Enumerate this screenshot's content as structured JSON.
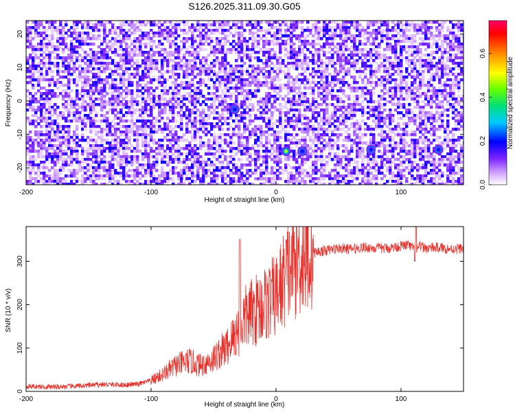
{
  "title": "S126.2025.311.09.30.G05",
  "chart_data": [
    {
      "type": "heatmap",
      "xlabel": "Height of straight line (km)",
      "ylabel": "Frequency (Hz)",
      "xlim": [
        -200,
        150
      ],
      "ylim": [
        -25,
        24
      ],
      "xticks": [
        -200,
        -100,
        0,
        100
      ],
      "xtick_labels": [
        "-200",
        "-100",
        "0",
        "100"
      ],
      "yticks": [
        -20,
        -10,
        0,
        10,
        20
      ],
      "ytick_labels": [
        "-20",
        "-10",
        "0",
        "10",
        "20"
      ],
      "colorbar": {
        "label": "Normalized spectral amplitude",
        "range": [
          0,
          0.75
        ],
        "ticks": [
          0,
          0.2,
          0.4,
          0.6
        ],
        "tick_labels": [
          "0.0",
          "0.2",
          "0.4",
          "0.6"
        ],
        "colors": [
          "#ffffff",
          "#cc99ff",
          "#7a22ff",
          "#0000ff",
          "#00ccff",
          "#00e07a",
          "#66ff00",
          "#ffff00",
          "#ff8800",
          "#ff0000",
          "#ff0066"
        ]
      },
      "background": "dense purple speckle of low-amplitude noise, amplitude ~0.0-0.15",
      "peaks": [
        {
          "x": 8,
          "y": -15,
          "amplitude": 0.5
        },
        {
          "x": -33,
          "y": -2.5,
          "amplitude": 0.2
        },
        {
          "x": 21,
          "y": -15,
          "amplitude": 0.2
        },
        {
          "x": 76,
          "y": -14.5,
          "amplitude": 0.2
        },
        {
          "x": 130,
          "y": -14.5,
          "amplitude": 0.2
        }
      ]
    },
    {
      "type": "line",
      "xlabel": "Height of straight line (km)",
      "ylabel": "SNR (10 * v/v)",
      "xlim": [
        -200,
        150
      ],
      "ylim": [
        0,
        380
      ],
      "xticks": [
        -200,
        -100,
        0,
        100
      ],
      "xtick_labels": [
        "-200",
        "-100",
        "0",
        "100"
      ],
      "yticks": [
        0,
        100,
        200,
        300
      ],
      "ytick_labels": [
        "0",
        "100",
        "200",
        "300"
      ],
      "color": "#e8302a",
      "series": [
        {
          "x": [
            -200,
            -180,
            -160,
            -140,
            -120,
            -110,
            -100,
            -90,
            -80,
            -70,
            -60,
            -50,
            -45,
            -40,
            -35,
            -33,
            -30,
            -25,
            -20,
            -15,
            -10,
            -5,
            0,
            5,
            10,
            15,
            20,
            25,
            30,
            40,
            50,
            60,
            70,
            80,
            90,
            100,
            105,
            110,
            112,
            115,
            120,
            130,
            140,
            150
          ],
          "y": [
            12,
            10,
            12,
            16,
            15,
            17,
            25,
            40,
            60,
            70,
            60,
            75,
            90,
            100,
            120,
            130,
            140,
            170,
            180,
            190,
            200,
            210,
            220,
            250,
            280,
            300,
            310,
            315,
            320,
            325,
            330,
            328,
            332,
            330,
            330,
            335,
            338,
            330,
            320,
            335,
            330,
            332,
            328,
            330
          ]
        }
      ],
      "annotations": [
        {
          "x": -29,
          "y": 350,
          "text": "spike"
        },
        {
          "x": 112,
          "y": 385,
          "text": "spike"
        }
      ]
    }
  ]
}
